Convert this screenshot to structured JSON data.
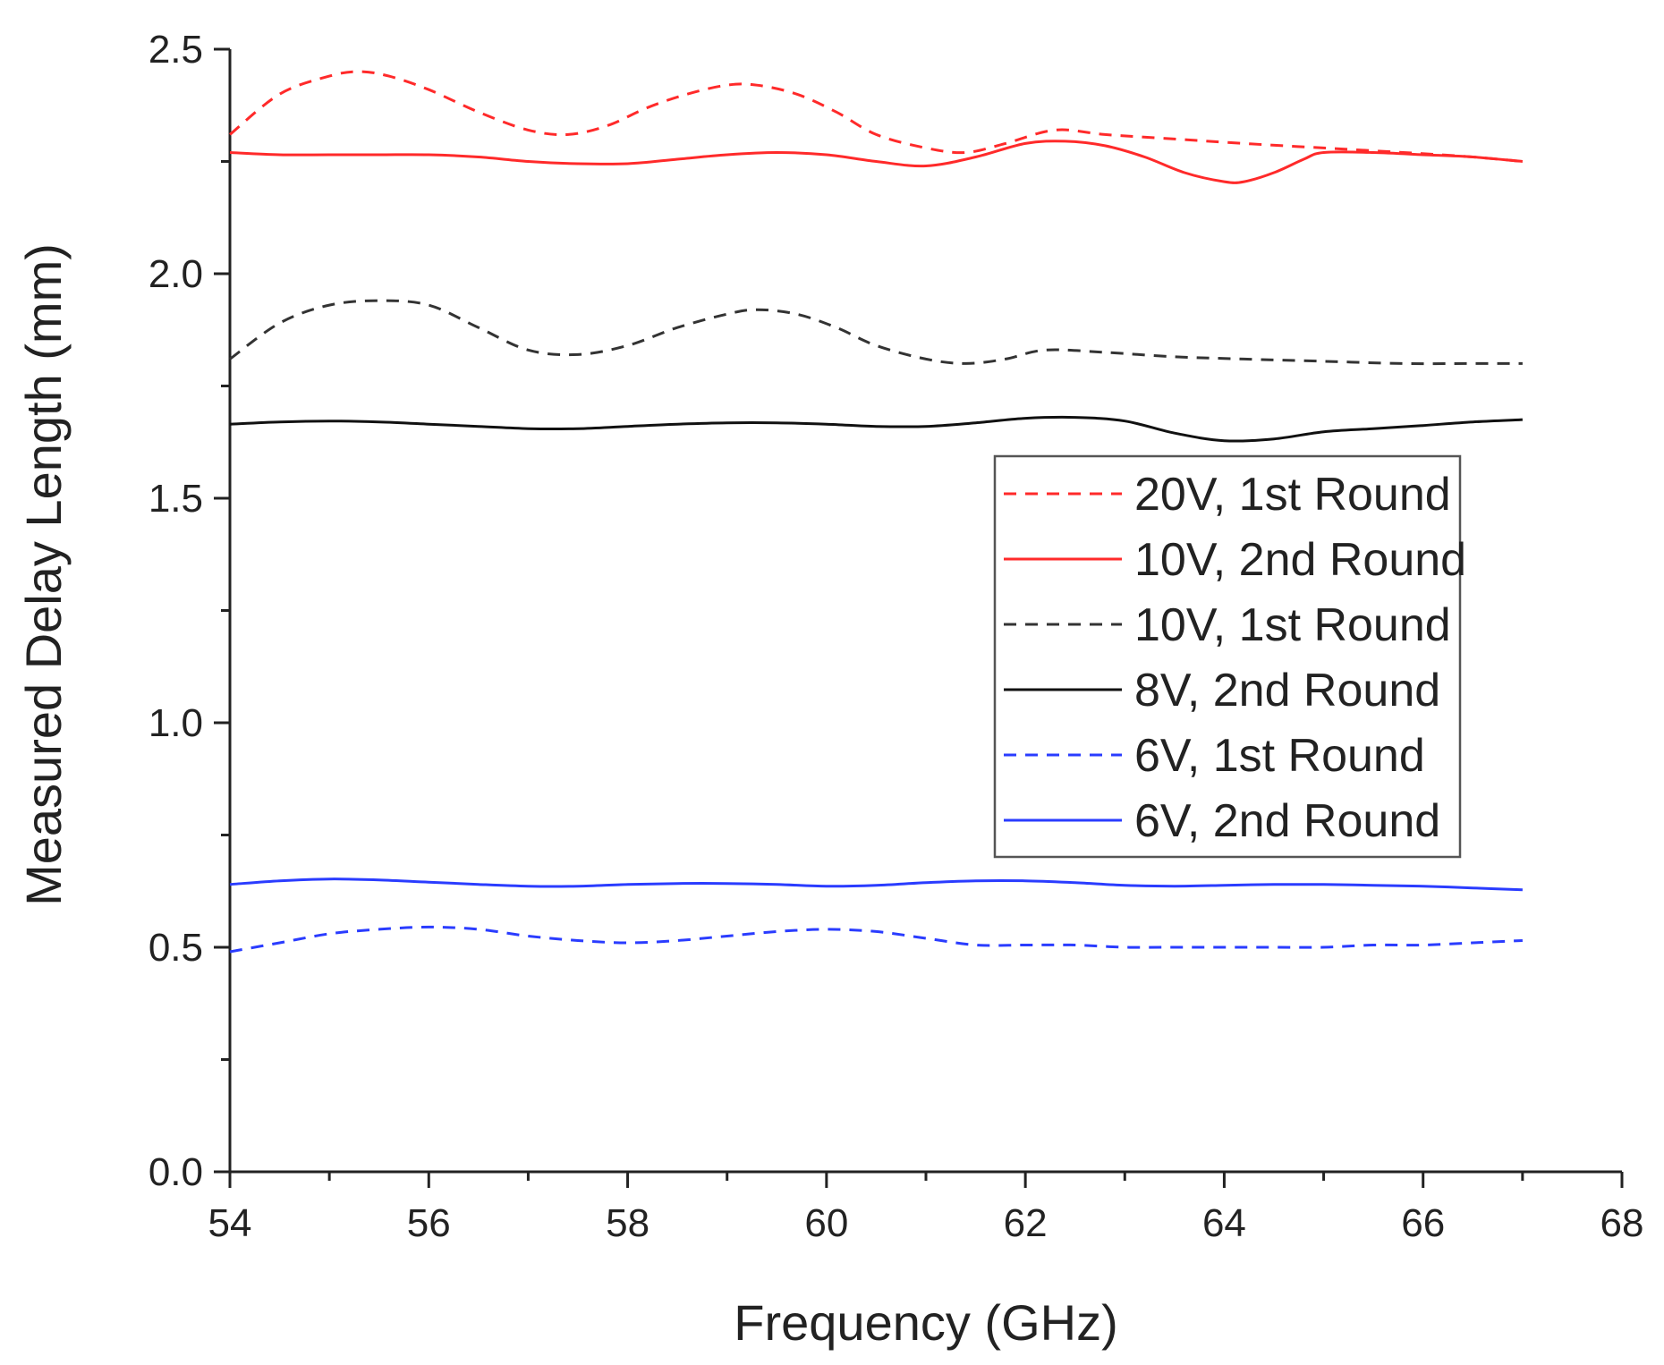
{
  "chart_data": {
    "type": "line",
    "title": "",
    "xlabel": "Frequency (GHz)",
    "ylabel": "Measured Delay Length (mm)",
    "xlim": [
      54,
      68
    ],
    "ylim": [
      0.0,
      2.5
    ],
    "xticks": [
      54,
      56,
      58,
      60,
      62,
      64,
      66,
      68
    ],
    "xtick_labels": [
      "54",
      "56",
      "58",
      "60",
      "62",
      "64",
      "66",
      "68"
    ],
    "yticks": [
      0.0,
      0.5,
      1.0,
      1.5,
      2.0,
      2.5
    ],
    "ytick_labels": [
      "0.0",
      "0.5",
      "1.0",
      "1.5",
      "2.0",
      "2.5"
    ],
    "grid": false,
    "legend_position": "right, middle",
    "series": [
      {
        "name": "20V, 1st Round",
        "color": "#ff2a2a",
        "dash": "dashed",
        "x": [
          54,
          54.5,
          55,
          55.3,
          55.6,
          56,
          56.5,
          57,
          57.4,
          57.8,
          58.2,
          58.6,
          59,
          59.3,
          59.7,
          60.1,
          60.5,
          61,
          61.4,
          61.8,
          62.3,
          62.8,
          63.5,
          64.2,
          65,
          65.8,
          66.5,
          67
        ],
        "y": [
          2.31,
          2.4,
          2.44,
          2.45,
          2.44,
          2.41,
          2.36,
          2.32,
          2.31,
          2.33,
          2.37,
          2.4,
          2.42,
          2.42,
          2.4,
          2.36,
          2.31,
          2.28,
          2.27,
          2.29,
          2.32,
          2.31,
          2.3,
          2.29,
          2.28,
          2.27,
          2.26,
          2.25
        ]
      },
      {
        "name": "10V, 2nd Round",
        "color": "#ff2a2a",
        "dash": "solid",
        "x": [
          54,
          54.5,
          55,
          55.5,
          56,
          56.5,
          57,
          57.5,
          58,
          58.5,
          59,
          59.5,
          60,
          60.5,
          61,
          61.5,
          62,
          62.4,
          62.8,
          63.2,
          63.6,
          64,
          64.2,
          64.5,
          64.8,
          65,
          65.5,
          66,
          66.5,
          67
        ],
        "y": [
          2.27,
          2.265,
          2.265,
          2.265,
          2.265,
          2.26,
          2.25,
          2.245,
          2.245,
          2.255,
          2.265,
          2.27,
          2.265,
          2.25,
          2.24,
          2.26,
          2.29,
          2.295,
          2.285,
          2.26,
          2.225,
          2.205,
          2.205,
          2.225,
          2.255,
          2.27,
          2.27,
          2.265,
          2.26,
          2.25
        ]
      },
      {
        "name": "10V, 1st Round",
        "color": "#333333",
        "dash": "dashed",
        "x": [
          54,
          54.5,
          55,
          55.5,
          56,
          56.5,
          57,
          57.5,
          58,
          58.5,
          59,
          59.3,
          59.7,
          60.1,
          60.5,
          61,
          61.4,
          61.8,
          62.2,
          62.8,
          63.5,
          64.2,
          65,
          65.8,
          66.5,
          67
        ],
        "y": [
          1.81,
          1.89,
          1.93,
          1.94,
          1.93,
          1.88,
          1.83,
          1.82,
          1.84,
          1.88,
          1.91,
          1.92,
          1.91,
          1.88,
          1.84,
          1.81,
          1.8,
          1.81,
          1.83,
          1.825,
          1.815,
          1.81,
          1.805,
          1.8,
          1.8,
          1.8
        ]
      },
      {
        "name": "8V, 2nd Round",
        "color": "#111111",
        "dash": "solid",
        "x": [
          54,
          54.5,
          55,
          55.5,
          56,
          56.5,
          57,
          57.5,
          58,
          58.5,
          59,
          59.5,
          60,
          60.5,
          61,
          61.5,
          62,
          62.5,
          63,
          63.5,
          64,
          64.5,
          65,
          65.5,
          66,
          66.5,
          67
        ],
        "y": [
          1.665,
          1.67,
          1.672,
          1.67,
          1.665,
          1.66,
          1.655,
          1.655,
          1.66,
          1.665,
          1.668,
          1.668,
          1.665,
          1.66,
          1.66,
          1.668,
          1.678,
          1.68,
          1.672,
          1.645,
          1.628,
          1.632,
          1.648,
          1.655,
          1.662,
          1.67,
          1.675
        ]
      },
      {
        "name": "6V, 1st Round",
        "color": "#2a3cff",
        "dash": "dashed",
        "x": [
          54,
          54.5,
          55,
          55.5,
          56,
          56.5,
          57,
          57.5,
          58,
          58.5,
          59,
          59.5,
          60,
          60.5,
          61,
          61.5,
          62,
          62.5,
          63,
          63.5,
          64,
          64.5,
          65,
          65.5,
          66,
          66.5,
          67
        ],
        "y": [
          0.49,
          0.51,
          0.53,
          0.54,
          0.545,
          0.54,
          0.525,
          0.515,
          0.51,
          0.515,
          0.525,
          0.535,
          0.54,
          0.535,
          0.52,
          0.505,
          0.505,
          0.505,
          0.5,
          0.5,
          0.5,
          0.5,
          0.5,
          0.505,
          0.505,
          0.51,
          0.515
        ]
      },
      {
        "name": "6V, 2nd Round",
        "color": "#2a3cff",
        "dash": "solid",
        "x": [
          54,
          54.5,
          55,
          55.5,
          56,
          56.5,
          57,
          57.5,
          58,
          58.5,
          59,
          59.5,
          60,
          60.5,
          61,
          61.5,
          62,
          62.5,
          63,
          63.5,
          64,
          64.5,
          65,
          65.5,
          66,
          66.5,
          67
        ],
        "y": [
          0.64,
          0.648,
          0.652,
          0.65,
          0.645,
          0.64,
          0.636,
          0.636,
          0.64,
          0.642,
          0.642,
          0.64,
          0.636,
          0.638,
          0.644,
          0.648,
          0.648,
          0.644,
          0.638,
          0.636,
          0.638,
          0.64,
          0.64,
          0.638,
          0.636,
          0.632,
          0.628
        ]
      }
    ]
  }
}
